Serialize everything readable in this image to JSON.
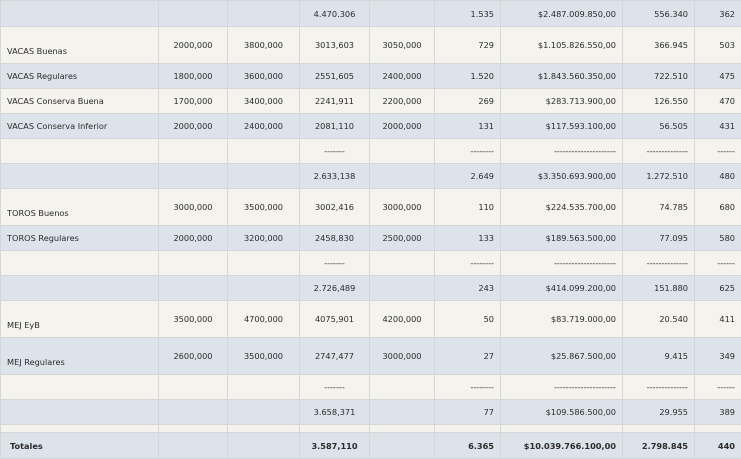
{
  "table": {
    "rows": [
      {
        "h": 26,
        "bg": "g",
        "cells": [
          "",
          "",
          "",
          "4.470.306",
          "",
          "1.535",
          "$2.487.009.850,00",
          "556.340",
          "362"
        ]
      },
      {
        "h": 37,
        "bg": "w",
        "cells": [
          "VACAS Buenas",
          "2000,000",
          "3800,000",
          "3013,603",
          "3050,000",
          "729",
          "$1.105.826.550,00",
          "366.945",
          "503"
        ]
      },
      {
        "h": 25,
        "bg": "g",
        "cells": [
          "VACAS Regulares",
          "1800,000",
          "3600,000",
          "2551,605",
          "2400,000",
          "1.520",
          "$1.843.560.350,00",
          "722.510",
          "475"
        ]
      },
      {
        "h": 25,
        "bg": "w",
        "cells": [
          "VACAS Conserva Buena",
          "1700,000",
          "3400,000",
          "2241,911",
          "2200,000",
          "269",
          "$283.713.900,00",
          "126.550",
          "470"
        ]
      },
      {
        "h": 25,
        "bg": "g",
        "cells": [
          "VACAS Conserva Inferior",
          "2000,000",
          "2400,000",
          "2081,110",
          "2000,000",
          "131",
          "$117.593.100,00",
          "56.505",
          "431"
        ]
      },
      {
        "h": 25,
        "bg": "w",
        "cells": [
          "",
          "",
          "",
          "-------",
          "",
          "--------",
          "---------------------",
          "--------------",
          "------"
        ]
      },
      {
        "h": 25,
        "bg": "g",
        "cells": [
          "",
          "",
          "",
          "2.633,138",
          "",
          "2.649",
          "$3.350.693.900,00",
          "1.272.510",
          "480"
        ]
      },
      {
        "h": 37,
        "bg": "w",
        "cells": [
          "TOROS Buenos",
          "3000,000",
          "3500,000",
          "3002,416",
          "3000,000",
          "110",
          "$224.535.700,00",
          "74.785",
          "680"
        ]
      },
      {
        "h": 25,
        "bg": "g",
        "cells": [
          "TOROS Regulares",
          "2000,000",
          "3200,000",
          "2458,830",
          "2500,000",
          "133",
          "$189.563.500,00",
          "77.095",
          "580"
        ]
      },
      {
        "h": 25,
        "bg": "w",
        "cells": [
          "",
          "",
          "",
          "-------",
          "",
          "--------",
          "---------------------",
          "--------------",
          "------"
        ]
      },
      {
        "h": 25,
        "bg": "g",
        "cells": [
          "",
          "",
          "",
          "2.726,489",
          "",
          "243",
          "$414.099.200,00",
          "151.880",
          "625"
        ]
      },
      {
        "h": 37,
        "bg": "w",
        "cells": [
          "MEJ EyB",
          "3500,000",
          "4700,000",
          "4075,901",
          "4200,000",
          "50",
          "$83.719.000,00",
          "20.540",
          "411"
        ]
      },
      {
        "h": 37,
        "bg": "g",
        "cells": [
          "MEJ Regulares",
          "2600,000",
          "3500,000",
          "2747,477",
          "3000,000",
          "27",
          "$25.867.500,00",
          "9.415",
          "349"
        ]
      },
      {
        "h": 25,
        "bg": "w",
        "cells": [
          "",
          "",
          "",
          "-------",
          "",
          "--------",
          "---------------------",
          "--------------",
          "------"
        ]
      },
      {
        "h": 25,
        "bg": "g",
        "cells": [
          "",
          "",
          "",
          "3.658,371",
          "",
          "77",
          "$109.586.500,00",
          "29.955",
          "389"
        ]
      },
      {
        "h": 4,
        "bg": "w",
        "cells": [
          "",
          "",
          "",
          "",
          "",
          "",
          "",
          "",
          ""
        ]
      },
      {
        "h": 26,
        "bg": "g",
        "total": true,
        "cells": [
          "Totales",
          "",
          "",
          "3.587,110",
          "",
          "6.365",
          "$10.039.766.100,00",
          "2.798.845",
          "440"
        ]
      }
    ]
  }
}
